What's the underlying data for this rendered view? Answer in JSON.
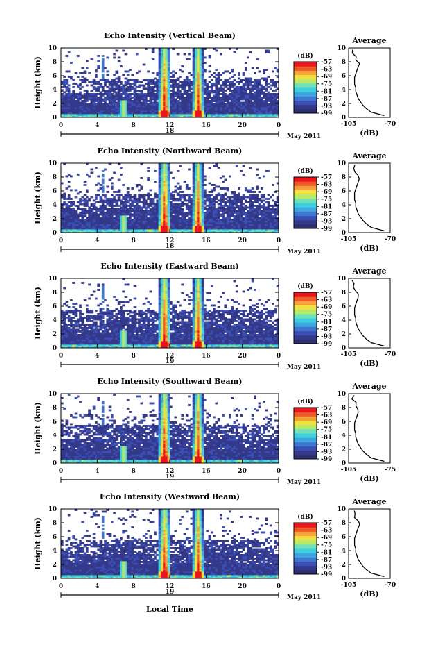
{
  "colors": {
    "scale": [
      "#2b2f6b",
      "#34398a",
      "#3b4fb4",
      "#3f78d0",
      "#3fa7e0",
      "#3fd0df",
      "#6fe0b8",
      "#b8ea6a",
      "#f0e040",
      "#f6a23a",
      "#f05a2a",
      "#e8161b"
    ],
    "line": "#000000"
  },
  "common": {
    "height_label": "Height (km)",
    "height_ticks": [
      "0",
      "2",
      "4",
      "6",
      "8",
      "10"
    ],
    "time_ticks": [
      "0",
      "4",
      "8",
      "12",
      "16",
      "20",
      "0"
    ],
    "date_label": "May 2011",
    "colorbar_unit": "(dB)",
    "colorbar_ticks": [
      "-57",
      "-63",
      "-69",
      "-75",
      "-81",
      "-87",
      "-93",
      "-99"
    ],
    "avg_title": "Average",
    "avg_unit": "(dB)",
    "x_label": "Local Time"
  },
  "panels": [
    {
      "title": "Echo Intensity (Vertical Beam)",
      "day": "18",
      "avg_ticks": [
        "-105",
        "-70"
      ]
    },
    {
      "title": "Echo Intensity (Northward Beam)",
      "day": "18",
      "avg_ticks": [
        "-105",
        "-70"
      ]
    },
    {
      "title": "Echo Intensity (Eastward Beam)",
      "day": "19",
      "avg_ticks": [
        "-105",
        "-70"
      ]
    },
    {
      "title": "Echo Intensity (Southward Beam)",
      "day": "19",
      "avg_ticks": [
        "-105",
        "-75"
      ]
    },
    {
      "title": "Echo Intensity (Westward Beam)",
      "day": "19",
      "avg_ticks": [
        "-105",
        "-70"
      ]
    }
  ],
  "chart_data": {
    "type": "heatmap",
    "x_range_hours": [
      0,
      24
    ],
    "y_range_km": [
      0,
      10
    ],
    "colorbar_range_db": [
      -99,
      -57
    ],
    "average_profile_db": [
      -75,
      -86,
      -90,
      -93,
      -95,
      -97,
      -98,
      -99,
      -99,
      -100,
      -100,
      -100,
      -99,
      -98,
      -97,
      -96,
      -98,
      -100,
      -101,
      -101
    ],
    "average_profile_heights_km": [
      0.25,
      0.75,
      1.25,
      1.75,
      2.25,
      2.75,
      3.25,
      3.75,
      4.25,
      4.75,
      5.25,
      5.75,
      6.25,
      6.75,
      7.25,
      7.75,
      8.25,
      8.75,
      9.25,
      9.75
    ]
  }
}
